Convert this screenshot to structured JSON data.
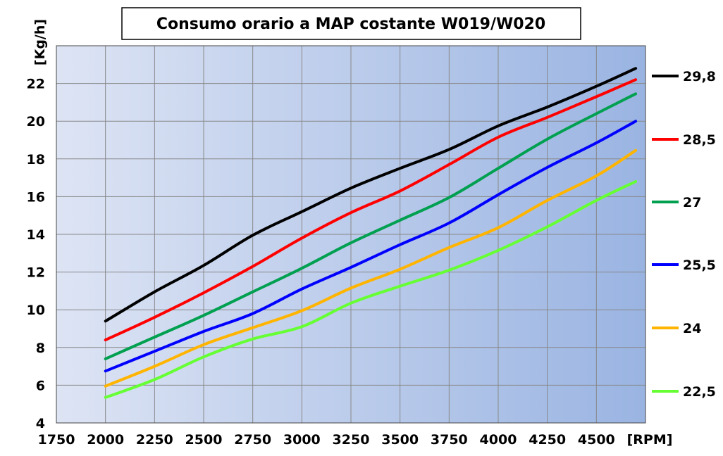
{
  "chart_data": {
    "type": "line",
    "title": "Consumo orario a MAP costante W019/W020",
    "xlabel": "[RPM]",
    "ylabel": "[Kg/h]",
    "xlim": [
      1750,
      4750
    ],
    "ylim": [
      4,
      24
    ],
    "xticks": [
      "1750",
      "2000",
      "2250",
      "2500",
      "2750",
      "3000",
      "3250",
      "3500",
      "3750",
      "4000",
      "4250",
      "4500"
    ],
    "yticks": [
      "4",
      "6",
      "8",
      "10",
      "12",
      "14",
      "16",
      "18",
      "20",
      "22"
    ],
    "grid": true,
    "legend_position": "right",
    "x": [
      2000,
      2250,
      2500,
      2750,
      3000,
      3250,
      3500,
      3750,
      4000,
      4250,
      4500,
      4700
    ],
    "series": [
      {
        "name": "29,8",
        "color": "#000000",
        "values": [
          9.4,
          10.95,
          12.35,
          13.95,
          15.2,
          16.45,
          17.5,
          18.5,
          19.75,
          20.75,
          21.85,
          22.8
        ]
      },
      {
        "name": "28,5",
        "color": "#ff0000",
        "values": [
          8.4,
          9.6,
          10.9,
          12.3,
          13.8,
          15.15,
          16.3,
          17.7,
          19.15,
          20.2,
          21.3,
          22.2
        ]
      },
      {
        "name": "27",
        "color": "#00a050",
        "values": [
          7.4,
          8.55,
          9.7,
          10.95,
          12.2,
          13.55,
          14.75,
          15.95,
          17.5,
          19.05,
          20.4,
          21.45
        ]
      },
      {
        "name": "25,5",
        "color": "#0000ff",
        "values": [
          6.75,
          7.8,
          8.85,
          9.8,
          11.1,
          12.25,
          13.45,
          14.6,
          16.1,
          17.55,
          18.85,
          20.0
        ]
      },
      {
        "name": "24",
        "color": "#ffb400",
        "values": [
          5.95,
          7.0,
          8.15,
          9.05,
          9.95,
          11.15,
          12.15,
          13.3,
          14.35,
          15.8,
          17.1,
          18.45
        ]
      },
      {
        "name": "22,5",
        "color": "#66ff33",
        "values": [
          5.35,
          6.3,
          7.5,
          8.45,
          9.1,
          10.35,
          11.25,
          12.1,
          13.15,
          14.4,
          15.8,
          16.8
        ]
      }
    ]
  }
}
